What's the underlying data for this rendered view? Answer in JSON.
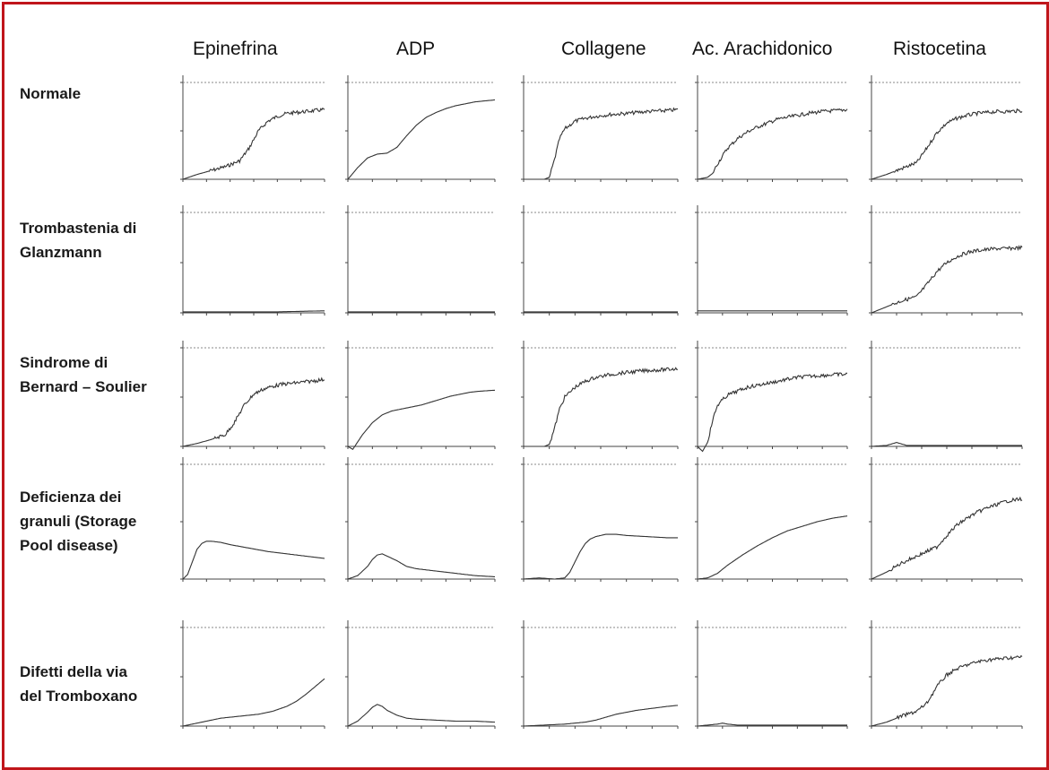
{
  "colors": {
    "frame": "#c0161b",
    "axis": "#444444",
    "dashed": "#8a8a8a",
    "curve": "#333333"
  },
  "columns": [
    "Epinefrina",
    "ADP",
    "Collagene",
    "Ac. Arachidonico",
    "Ristocetina"
  ],
  "rows": [
    {
      "label_lines": [
        "Normale"
      ]
    },
    {
      "label_lines": [
        "Trombastenia di",
        "Glanzmann"
      ]
    },
    {
      "label_lines": [
        "Sindrome di",
        "Bernard – Soulier"
      ]
    },
    {
      "label_lines": [
        "Deficienza dei",
        "granuli (Storage",
        "Pool disease)"
      ]
    },
    {
      "label_lines": [
        "Difetti della via",
        "del Tromboxano"
      ]
    }
  ],
  "chart_data": {
    "type": "line",
    "x_range": [
      0,
      30
    ],
    "y_range": [
      0,
      100
    ],
    "grid": false,
    "panels": [
      {
        "row": "Normale",
        "column": "Epinefrina",
        "x": [
          0,
          3,
          6,
          9,
          12,
          14,
          16,
          18,
          20,
          22,
          24,
          26,
          28,
          30
        ],
        "y": [
          0,
          5,
          9,
          13,
          19,
          32,
          50,
          60,
          65,
          68,
          69,
          70,
          71,
          72
        ],
        "noisy": true
      },
      {
        "row": "Normale",
        "column": "ADP",
        "x": [
          0,
          2,
          4,
          6,
          8,
          10,
          12,
          14,
          16,
          18,
          20,
          22,
          24,
          26,
          28,
          30
        ],
        "y": [
          0,
          12,
          22,
          26,
          27,
          33,
          45,
          56,
          64,
          69,
          73,
          76,
          78,
          80,
          81,
          82
        ],
        "noisy": false
      },
      {
        "row": "Normale",
        "column": "Collagene",
        "x": [
          0,
          2,
          4,
          5,
          6,
          7,
          8,
          10,
          12,
          14,
          17,
          20,
          24,
          28,
          30
        ],
        "y": [
          0,
          0,
          0,
          2,
          20,
          42,
          52,
          60,
          63,
          65,
          67,
          68,
          70,
          71,
          72
        ],
        "noisy": true
      },
      {
        "row": "Normale",
        "column": "Ac. Arachidonico",
        "x": [
          0,
          2,
          3,
          4,
          6,
          8,
          10,
          12,
          14,
          16,
          18,
          20,
          22,
          25,
          28,
          30
        ],
        "y": [
          0,
          2,
          6,
          16,
          32,
          42,
          49,
          54,
          58,
          62,
          64,
          66,
          68,
          70,
          71,
          72
        ],
        "noisy": true
      },
      {
        "row": "Normale",
        "column": "Ristocetina",
        "x": [
          0,
          3,
          6,
          9,
          11,
          13,
          15,
          17,
          19,
          21,
          23,
          25,
          27,
          30
        ],
        "y": [
          0,
          5,
          11,
          17,
          32,
          48,
          58,
          63,
          66,
          68,
          69,
          70,
          70,
          71
        ],
        "noisy": true
      },
      {
        "row": "Trombastenia di Glanzmann",
        "column": "Epinefrina",
        "x": [
          0,
          10,
          20,
          30
        ],
        "y": [
          1,
          1,
          1,
          2
        ],
        "noisy": false
      },
      {
        "row": "Trombastenia di Glanzmann",
        "column": "ADP",
        "x": [
          0,
          10,
          20,
          30
        ],
        "y": [
          1,
          1,
          1,
          1
        ],
        "noisy": false
      },
      {
        "row": "Trombastenia di Glanzmann",
        "column": "Collagene",
        "x": [
          0,
          10,
          20,
          30
        ],
        "y": [
          1,
          1,
          1,
          1
        ],
        "noisy": false
      },
      {
        "row": "Trombastenia di Glanzmann",
        "column": "Ac. Arachidonico",
        "x": [
          0,
          10,
          20,
          30
        ],
        "y": [
          2,
          2,
          2,
          2
        ],
        "noisy": false
      },
      {
        "row": "Trombastenia di Glanzmann",
        "column": "Ristocetina",
        "x": [
          0,
          3,
          6,
          9,
          11,
          13,
          15,
          17,
          19,
          21,
          23,
          25,
          27,
          30
        ],
        "y": [
          0,
          6,
          12,
          16,
          28,
          41,
          50,
          56,
          60,
          62,
          63,
          64,
          64,
          65
        ],
        "noisy": true
      },
      {
        "row": "Sindrome di Bernard – Soulier",
        "column": "Epinefrina",
        "x": [
          0,
          3,
          6,
          9,
          11,
          13,
          15,
          17,
          19,
          21,
          23,
          25,
          27,
          30
        ],
        "y": [
          0,
          3,
          7,
          12,
          25,
          42,
          53,
          58,
          61,
          63,
          64,
          65,
          66,
          68
        ],
        "noisy": true
      },
      {
        "row": "Sindrome di Bernard – Soulier",
        "column": "ADP",
        "x": [
          0,
          1,
          3,
          5,
          7,
          9,
          11,
          13,
          15,
          17,
          19,
          21,
          23,
          25,
          27,
          30
        ],
        "y": [
          0,
          -3,
          12,
          24,
          32,
          36,
          38,
          40,
          42,
          45,
          48,
          51,
          53,
          55,
          56,
          57
        ],
        "noisy": false
      },
      {
        "row": "Sindrome di Bernard – Soulier",
        "column": "Collagene",
        "x": [
          0,
          2,
          4,
          5,
          6,
          7,
          8,
          10,
          12,
          14,
          17,
          20,
          24,
          28,
          30
        ],
        "y": [
          0,
          0,
          0,
          2,
          18,
          38,
          50,
          60,
          66,
          70,
          73,
          75,
          77,
          78,
          79
        ],
        "noisy": true
      },
      {
        "row": "Sindrome di Bernard – Soulier",
        "column": "Ac. Arachidonico",
        "x": [
          0,
          1,
          2,
          3,
          4,
          6,
          8,
          10,
          12,
          14,
          16,
          18,
          20,
          22,
          25,
          28,
          30
        ],
        "y": [
          0,
          -5,
          4,
          26,
          42,
          52,
          56,
          60,
          62,
          64,
          66,
          68,
          70,
          71,
          72,
          73,
          73
        ],
        "noisy": true
      },
      {
        "row": "Sindrome di Bernard – Soulier",
        "column": "Ristocetina",
        "x": [
          0,
          3,
          5,
          7,
          10,
          15,
          20,
          25,
          30
        ],
        "y": [
          0,
          1,
          4,
          1,
          1,
          1,
          1,
          1,
          1
        ],
        "noisy": false
      },
      {
        "row": "Deficienza dei granuli (Storage Pool disease)",
        "column": "Epinefrina",
        "x": [
          0,
          1,
          2,
          3,
          4,
          5,
          6,
          8,
          10,
          14,
          18,
          22,
          26,
          30
        ],
        "y": [
          0,
          4,
          15,
          26,
          31,
          33,
          33,
          32,
          30,
          27,
          24,
          22,
          20,
          18
        ],
        "noisy": false
      },
      {
        "row": "Deficienza dei granuli (Storage Pool disease)",
        "column": "ADP",
        "x": [
          0,
          2,
          4,
          5,
          6,
          7,
          8,
          10,
          12,
          14,
          18,
          22,
          26,
          30
        ],
        "y": [
          0,
          3,
          11,
          17,
          21,
          22,
          20,
          16,
          11,
          9,
          7,
          5,
          3,
          2
        ],
        "noisy": false
      },
      {
        "row": "Deficienza dei granuli (Storage Pool disease)",
        "column": "Collagene",
        "x": [
          0,
          3,
          6,
          8,
          9,
          10,
          11,
          12,
          13,
          14,
          15,
          16,
          18,
          20,
          24,
          28,
          30
        ],
        "y": [
          0,
          1,
          0,
          1,
          6,
          15,
          24,
          31,
          35,
          37,
          38,
          39,
          39,
          38,
          37,
          36,
          36
        ],
        "noisy": false
      },
      {
        "row": "Deficienza dei granuli (Storage Pool disease)",
        "column": "Ac. Arachidonico",
        "x": [
          0,
          2,
          4,
          6,
          9,
          12,
          15,
          18,
          21,
          24,
          27,
          30
        ],
        "y": [
          0,
          1,
          5,
          12,
          21,
          29,
          36,
          42,
          46,
          50,
          53,
          55
        ],
        "noisy": false
      },
      {
        "row": "Deficienza dei granuli (Storage Pool disease)",
        "column": "Ristocetina",
        "x": [
          0,
          3,
          6,
          9,
          11,
          13,
          15,
          17,
          19,
          21,
          23,
          25,
          27,
          30
        ],
        "y": [
          0,
          6,
          14,
          20,
          24,
          28,
          38,
          47,
          53,
          58,
          62,
          65,
          68,
          70
        ],
        "noisy": true
      },
      {
        "row": "Difetti della via del Tromboxano",
        "column": "Epinefrina",
        "x": [
          0,
          4,
          8,
          12,
          16,
          19,
          22,
          24,
          26,
          28,
          30
        ],
        "y": [
          0,
          4,
          8,
          10,
          12,
          15,
          20,
          25,
          32,
          40,
          48
        ],
        "noisy": false
      },
      {
        "row": "Difetti della via del Tromboxano",
        "column": "ADP",
        "x": [
          0,
          2,
          4,
          5,
          6,
          7,
          8,
          10,
          12,
          14,
          18,
          22,
          26,
          30
        ],
        "y": [
          0,
          5,
          14,
          19,
          22,
          20,
          16,
          11,
          8,
          7,
          6,
          5,
          5,
          4
        ],
        "noisy": false
      },
      {
        "row": "Difetti della via del Tromboxano",
        "column": "Collagene",
        "x": [
          0,
          4,
          8,
          12,
          14,
          16,
          18,
          20,
          22,
          25,
          28,
          30
        ],
        "y": [
          0,
          1,
          2,
          4,
          6,
          9,
          12,
          14,
          16,
          18,
          20,
          21
        ],
        "noisy": false
      },
      {
        "row": "Difetti della via del Tromboxano",
        "column": "Ac. Arachidonico",
        "x": [
          0,
          2,
          4,
          5,
          6,
          8,
          10,
          15,
          20,
          25,
          30
        ],
        "y": [
          0,
          1,
          2,
          3,
          2,
          1,
          1,
          1,
          1,
          1,
          1
        ],
        "noisy": false
      },
      {
        "row": "Difetti della via del Tromboxano",
        "column": "Ristocetina",
        "x": [
          0,
          3,
          6,
          9,
          11,
          13,
          15,
          17,
          19,
          21,
          23,
          25,
          27,
          30
        ],
        "y": [
          0,
          4,
          10,
          15,
          23,
          40,
          52,
          58,
          62,
          65,
          67,
          68,
          69,
          70
        ],
        "noisy": true
      }
    ]
  }
}
